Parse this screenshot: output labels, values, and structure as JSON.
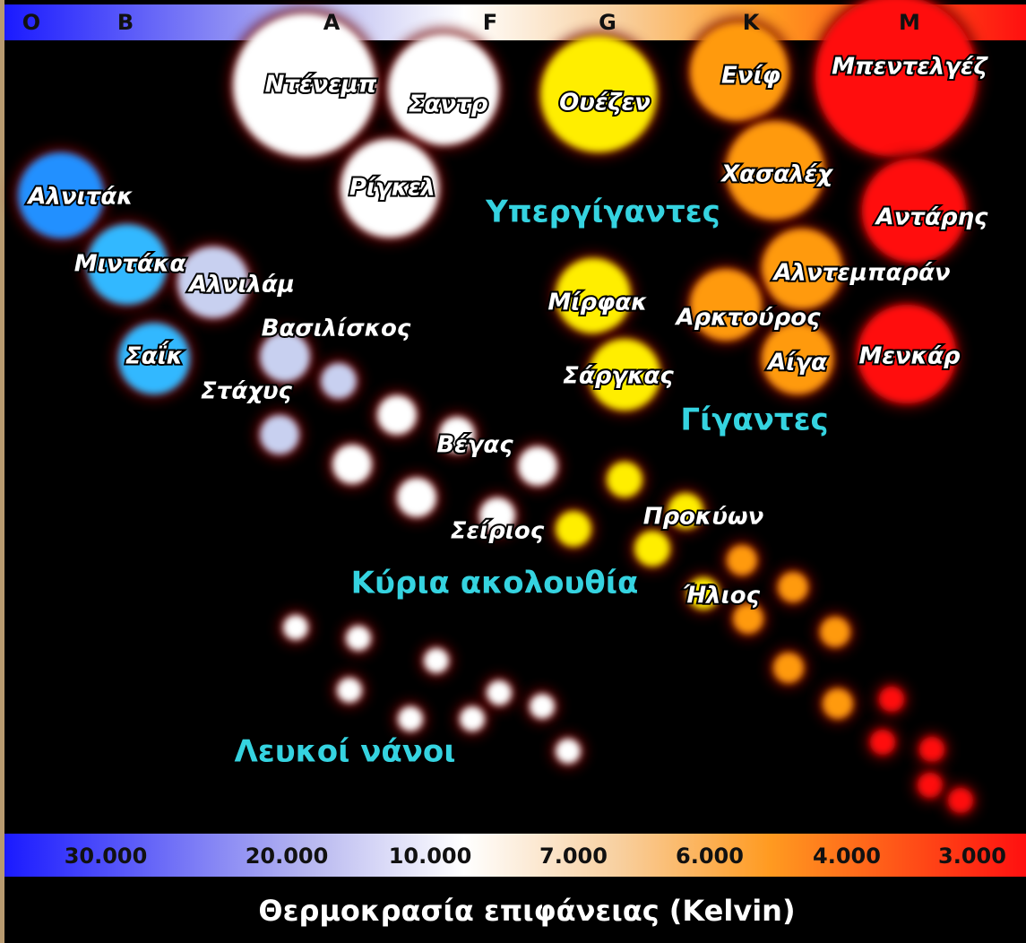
{
  "spectral_classes": [
    "O",
    "B",
    "A",
    "F",
    "G",
    "K",
    "M"
  ],
  "temperature_scale": [
    "30.000",
    "20.000",
    "10.000",
    "7.000",
    "6.000",
    "4.000",
    "3.000"
  ],
  "axis_title": "Θερμοκρασία επιφάνειας (Kelvin)",
  "regions": [
    "Υπεργίγαντες",
    "Γίγαντες",
    "Κύρια ακολουθία",
    "Λευκοί νάνοι"
  ],
  "stars": [
    "Ντένεμπ",
    "Σαντρ",
    "Ρίγκελ",
    "Ουέζεν",
    "Ενίφ",
    "Μπεντελγέζ",
    "Χασαλέχ",
    "Αντάρης",
    "Αλντεμπαράν",
    "Αρκτούρος",
    "Αίγα",
    "Μενκάρ",
    "Αλνιτάκ",
    "Μιντάκα",
    "Αλνιλάμ",
    "Σαΐκ",
    "Βασιλίσκος",
    "Στάχυς",
    "Μίρφακ",
    "Σάργκας",
    "Βέγας",
    "Σείριος",
    "Προκύων",
    "Ήλιος"
  ]
}
